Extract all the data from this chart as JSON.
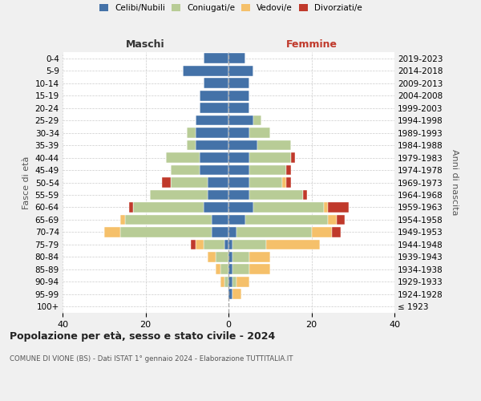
{
  "age_groups": [
    "100+",
    "95-99",
    "90-94",
    "85-89",
    "80-84",
    "75-79",
    "70-74",
    "65-69",
    "60-64",
    "55-59",
    "50-54",
    "45-49",
    "40-44",
    "35-39",
    "30-34",
    "25-29",
    "20-24",
    "15-19",
    "10-14",
    "5-9",
    "0-4"
  ],
  "birth_years": [
    "≤ 1923",
    "1924-1928",
    "1929-1933",
    "1934-1938",
    "1939-1943",
    "1944-1948",
    "1949-1953",
    "1954-1958",
    "1959-1963",
    "1964-1968",
    "1969-1973",
    "1974-1978",
    "1979-1983",
    "1984-1988",
    "1989-1993",
    "1994-1998",
    "1999-2003",
    "2004-2008",
    "2009-2013",
    "2014-2018",
    "2019-2023"
  ],
  "maschi": {
    "celibi": [
      0,
      0,
      0,
      0,
      0,
      1,
      4,
      4,
      6,
      5,
      5,
      7,
      7,
      8,
      8,
      8,
      7,
      7,
      6,
      11,
      6
    ],
    "coniugati": [
      0,
      0,
      1,
      2,
      3,
      5,
      22,
      21,
      17,
      14,
      9,
      7,
      8,
      2,
      2,
      0,
      0,
      0,
      0,
      0,
      0
    ],
    "vedovi": [
      0,
      0,
      1,
      1,
      2,
      2,
      4,
      1,
      0,
      0,
      0,
      0,
      0,
      0,
      0,
      0,
      0,
      0,
      0,
      0,
      0
    ],
    "divorziati": [
      0,
      0,
      0,
      0,
      0,
      1,
      0,
      0,
      1,
      0,
      2,
      0,
      0,
      0,
      0,
      0,
      0,
      0,
      0,
      0,
      0
    ]
  },
  "femmine": {
    "nubili": [
      0,
      1,
      1,
      1,
      1,
      1,
      2,
      4,
      6,
      5,
      5,
      5,
      5,
      7,
      5,
      6,
      5,
      5,
      5,
      6,
      4
    ],
    "coniugate": [
      0,
      0,
      1,
      4,
      4,
      8,
      18,
      20,
      17,
      13,
      8,
      9,
      10,
      8,
      5,
      2,
      0,
      0,
      0,
      0,
      0
    ],
    "vedove": [
      0,
      2,
      3,
      5,
      5,
      13,
      5,
      2,
      1,
      0,
      1,
      0,
      0,
      0,
      0,
      0,
      0,
      0,
      0,
      0,
      0
    ],
    "divorziate": [
      0,
      0,
      0,
      0,
      0,
      0,
      2,
      2,
      5,
      1,
      1,
      1,
      1,
      0,
      0,
      0,
      0,
      0,
      0,
      0,
      0
    ]
  },
  "colors": {
    "celibi": "#4472a8",
    "coniugati": "#b8cc96",
    "vedovi": "#f5c06a",
    "divorziati": "#c0392b"
  },
  "title": "Popolazione per età, sesso e stato civile - 2024",
  "subtitle": "COMUNE DI VIONE (BS) - Dati ISTAT 1° gennaio 2024 - Elaborazione TUTTITALIA.IT",
  "ylabel_left": "Fasce di età",
  "ylabel_right": "Anni di nascita",
  "xlabel_maschi": "Maschi",
  "xlabel_femmine": "Femmine",
  "xlim": 40,
  "background_color": "#f0f0f0",
  "plot_bg": "#ffffff"
}
